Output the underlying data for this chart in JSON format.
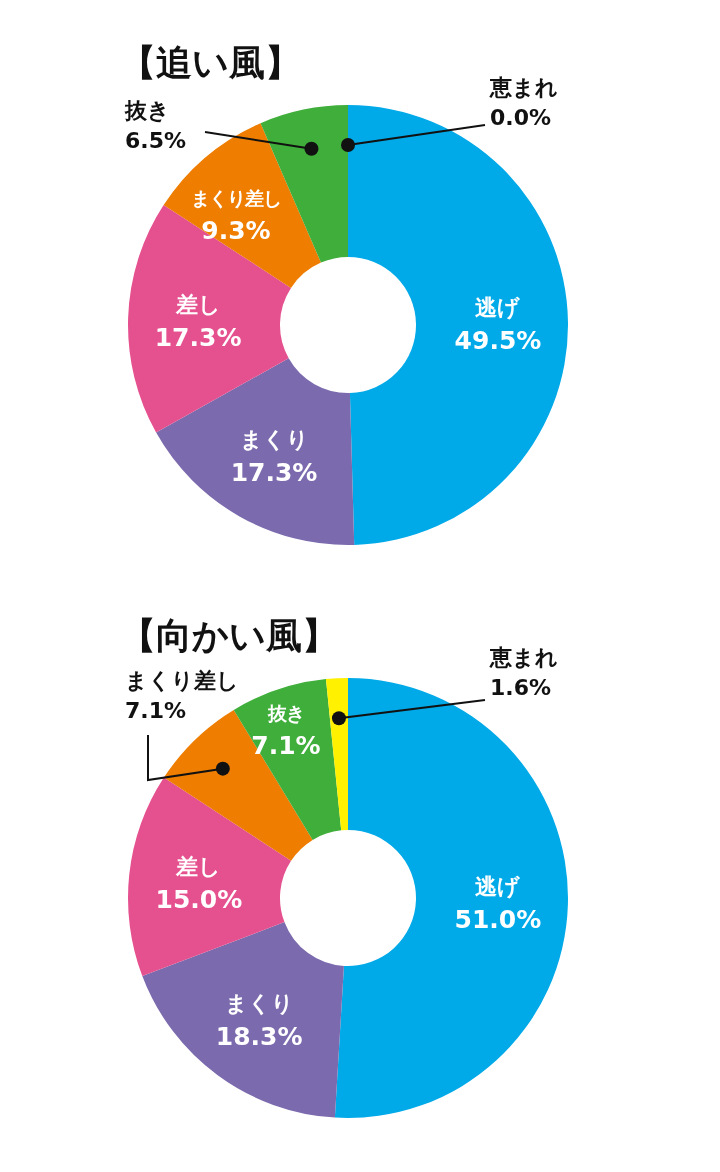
{
  "chart_data": [
    {
      "type": "donut",
      "title": "【追い風】",
      "categories": [
        "逃げ",
        "まくり",
        "差し",
        "まくり差し",
        "抜き",
        "恵まれ"
      ],
      "values": [
        49.5,
        17.3,
        17.3,
        9.3,
        6.5,
        0.0
      ],
      "value_labels": [
        "49.5%",
        "17.3%",
        "17.3%",
        "9.3%",
        "6.5%",
        "0.0%"
      ],
      "colors": [
        "#00a9e8",
        "#7b6aad",
        "#e5508f",
        "#ee7d00",
        "#3fae3a",
        "#fff100"
      ]
    },
    {
      "type": "donut",
      "title": "【向かい風】",
      "categories": [
        "逃げ",
        "まくり",
        "差し",
        "まくり差し",
        "抜き",
        "恵まれ"
      ],
      "values": [
        51.0,
        18.3,
        15.0,
        7.1,
        7.1,
        1.6
      ],
      "value_labels": [
        "51.0%",
        "18.3%",
        "15.0%",
        "7.1%",
        "7.1%",
        "1.6%"
      ],
      "colors": [
        "#00a9e8",
        "#7b6aad",
        "#e5508f",
        "#ee7d00",
        "#3fae3a",
        "#fff100"
      ]
    }
  ]
}
